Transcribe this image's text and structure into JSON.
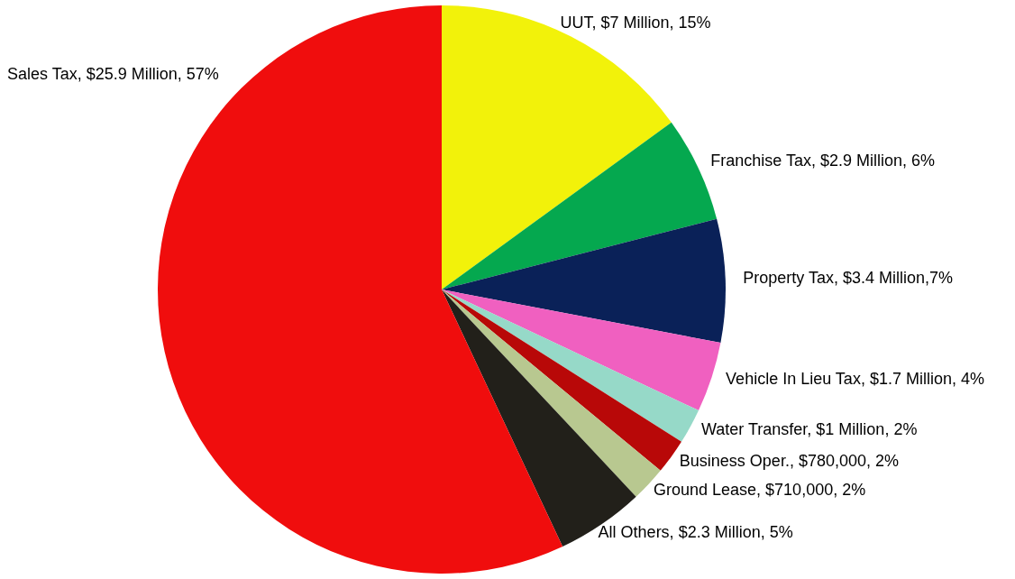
{
  "chart_data": {
    "type": "pie",
    "categories": [
      "UUT",
      "Franchise Tax",
      "Property Tax",
      "Vehicle In Lieu Tax",
      "Water Transfer",
      "Business Oper.",
      "Ground Lease",
      "All Others",
      "Sales Tax"
    ],
    "values": [
      15,
      6,
      7,
      4,
      2,
      2,
      2,
      5,
      57
    ],
    "value_labels": [
      "$7 Million, 15%",
      "$2.9 Million, 6%",
      "$3.4 Million,7%",
      "$1.7 Million, 4%",
      "$1 Million, 2%",
      "$780,000, 2%",
      "$710,000, 2%",
      "$2.3 Million, 5%",
      "$25.9 Million, 57%"
    ],
    "colors": [
      "#f2f20a",
      "#05a84f",
      "#0a2158",
      "#f060c0",
      "#96d9c8",
      "#b80808",
      "#b8c890",
      "#22201a",
      "#f00d0d"
    ],
    "legend": false
  }
}
